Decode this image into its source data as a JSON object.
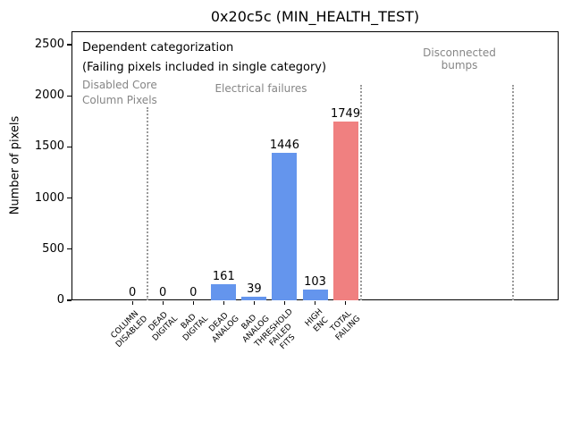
{
  "figure": {
    "background": "#ffffff"
  },
  "chart_data": {
    "type": "bar",
    "title": "0x20c5c (MIN_HEALTH_TEST)",
    "xlabel": "",
    "ylabel": "Number of pixels",
    "ylim": [
      0,
      2631
    ],
    "yticks": [
      0,
      500,
      1000,
      1500,
      2000,
      2500
    ],
    "xlim": [
      -2,
      14
    ],
    "grid": false,
    "legend": false,
    "categories": [
      "COLUMN\nDISABLED",
      "DEAD\nDIGITAL",
      "BAD\nDIGITAL",
      "DEAD\nANALOG",
      "BAD\nANALOG",
      "THRESHOLD\nFAILED\nFITS",
      "HIGH\nENC",
      "TOTAL\nFAILING"
    ],
    "values": [
      0,
      0,
      0,
      161,
      39,
      1446,
      103,
      1749
    ],
    "bar_value_labels": [
      "0",
      "0",
      "0",
      "161",
      "39",
      "1446",
      "103",
      "1749"
    ],
    "bar_colors": [
      "#6495ED",
      "#6495ED",
      "#6495ED",
      "#6495ED",
      "#6495ED",
      "#6495ED",
      "#6495ED",
      "#F08080"
    ],
    "separators_x": [
      0.5,
      7.5,
      12.5
    ],
    "colors": {
      "failure_bars": "#6495ED",
      "total_bar": "#F08080",
      "region_text": "#868686",
      "separator_line": "#9a9a9a"
    },
    "annotations": [
      {
        "id": "dependent_line1",
        "text": "Dependent categorization",
        "color": "#000000"
      },
      {
        "id": "dependent_line2",
        "text": "(Failing pixels included in single category)",
        "color": "#000000"
      },
      {
        "id": "region_disabled",
        "text": "Disabled Core\nColumn Pixels",
        "color": "#868686"
      },
      {
        "id": "region_electrical",
        "text": "Electrical failures",
        "color": "#868686"
      },
      {
        "id": "region_disconnected",
        "text": "Disconnected\nbumps",
        "color": "#868686"
      }
    ]
  }
}
